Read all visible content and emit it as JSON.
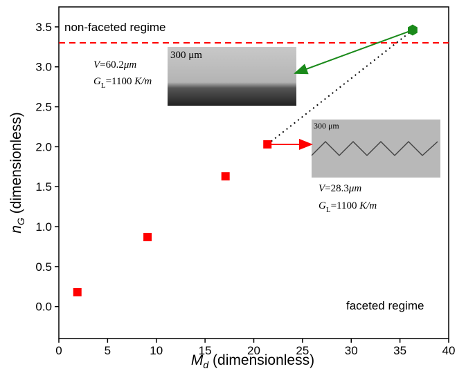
{
  "chart_data": {
    "type": "scatter",
    "xlabel": {
      "symbol": "M",
      "subscript": "d",
      "text": "(dimensionless)"
    },
    "ylabel": {
      "symbol": "n",
      "subscript": "G",
      "text": "(dimensionless)"
    },
    "xlim": [
      0,
      40
    ],
    "xticks": [
      0,
      5,
      10,
      15,
      20,
      25,
      30,
      35,
      40
    ],
    "ylim": [
      -0.4,
      3.75
    ],
    "yticks": [
      {
        "value": 0,
        "label": "0.0"
      },
      {
        "value": 0.5,
        "label": "0.5"
      },
      {
        "value": 1,
        "label": "1.0"
      },
      {
        "value": 1.5,
        "label": "1.5"
      },
      {
        "value": 2,
        "label": "2.0"
      },
      {
        "value": 2.5,
        "label": "2.5"
      },
      {
        "value": 3,
        "label": "3.0"
      },
      {
        "value": 3.5,
        "label": "3.5"
      }
    ],
    "series": [
      {
        "color": "#ff0000",
        "marker": "square",
        "x": [
          1.9,
          9.1,
          17.1,
          21.4
        ],
        "values": [
          0.18,
          0.87,
          1.63,
          2.03
        ]
      },
      {
        "color": "#1a8a1a",
        "marker": "hexagon",
        "x": [
          36.3
        ],
        "values": [
          3.46
        ]
      }
    ],
    "hline": {
      "value": 3.3,
      "color": "#ff0000"
    },
    "annotations": {
      "upper_region": "non-faceted regime",
      "lower_region": "faceted regime",
      "inset1": {
        "scale": "300 μm",
        "velocity": {
          "symbol": "V",
          "text": "=60.2",
          "unit": "μm"
        },
        "gradient": {
          "symbol": "G",
          "subscript": "L",
          "text": "=1100 ",
          "unit": "K/m"
        }
      },
      "inset2": {
        "scale": "300 μm",
        "velocity": {
          "symbol": "V",
          "text": "=28.3",
          "unit": "μm"
        },
        "gradient": {
          "symbol": "G",
          "subscript": "L",
          "text": "=1100 ",
          "unit": "K/m"
        }
      }
    }
  }
}
